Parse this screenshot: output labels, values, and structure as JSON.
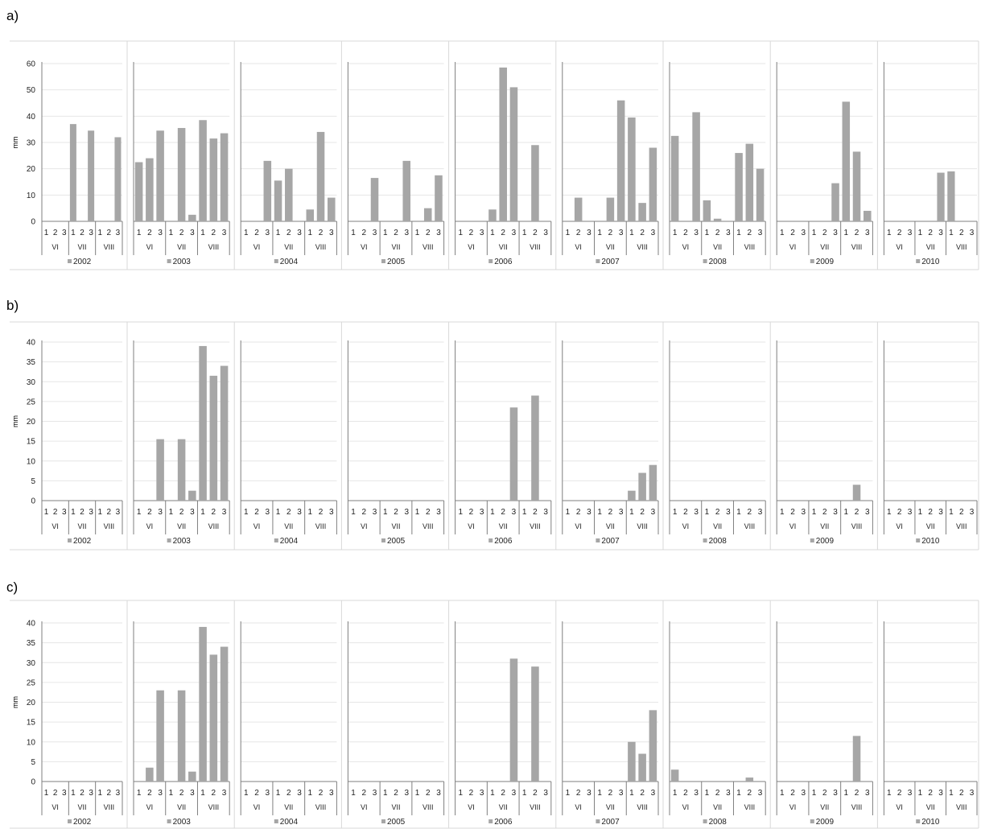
{
  "chart_data": [
    {
      "panel": "a)",
      "type": "bar",
      "ylabel": "mm",
      "ylim": [
        0,
        60
      ],
      "yticks": [
        0,
        10,
        20,
        30,
        40,
        50,
        60
      ],
      "months": [
        "VI",
        "VII",
        "VIII"
      ],
      "decades": [
        "1",
        "2",
        "3"
      ],
      "legend_position": "bottom",
      "series": [
        {
          "name": "2002",
          "values": [
            0,
            0,
            0,
            37,
            0,
            34.5,
            0,
            0,
            32
          ]
        },
        {
          "name": "2003",
          "values": [
            22.5,
            24,
            34.5,
            0,
            35.5,
            2.5,
            38.5,
            31.5,
            33.5
          ]
        },
        {
          "name": "2004",
          "values": [
            0,
            0,
            23,
            15.5,
            20,
            0,
            4.5,
            34,
            9
          ]
        },
        {
          "name": "2005",
          "values": [
            0,
            0,
            16.5,
            0,
            0,
            23,
            0,
            5,
            17.5
          ]
        },
        {
          "name": "2006",
          "values": [
            0,
            0,
            0,
            4.5,
            58.5,
            51,
            0,
            29,
            0
          ]
        },
        {
          "name": "2007",
          "values": [
            0,
            9,
            0,
            0,
            9,
            46,
            39.5,
            7,
            28
          ]
        },
        {
          "name": "2008",
          "values": [
            32.5,
            0,
            41.5,
            8,
            1,
            0,
            26,
            29.5,
            20
          ]
        },
        {
          "name": "2009",
          "values": [
            0,
            0,
            0,
            0,
            0,
            14.5,
            45.5,
            26.5,
            4
          ]
        },
        {
          "name": "2010",
          "values": [
            0,
            0,
            0,
            0,
            0,
            18.5,
            19,
            0,
            0
          ]
        }
      ]
    },
    {
      "panel": "b)",
      "type": "bar",
      "ylabel": "mm",
      "ylim": [
        0,
        40
      ],
      "yticks": [
        0,
        5,
        10,
        15,
        20,
        25,
        30,
        35,
        40
      ],
      "months": [
        "VI",
        "VII",
        "VIII"
      ],
      "decades": [
        "1",
        "2",
        "3"
      ],
      "legend_position": "bottom",
      "series": [
        {
          "name": "2002",
          "values": [
            0,
            0,
            0,
            0,
            0,
            0,
            0,
            0,
            0
          ]
        },
        {
          "name": "2003",
          "values": [
            0,
            0,
            15.5,
            0,
            15.5,
            2.5,
            39,
            31.5,
            34
          ]
        },
        {
          "name": "2004",
          "values": [
            0,
            0,
            0,
            0,
            0,
            0,
            0,
            0,
            0
          ]
        },
        {
          "name": "2005",
          "values": [
            0,
            0,
            0,
            0,
            0,
            0,
            0,
            0,
            0
          ]
        },
        {
          "name": "2006",
          "values": [
            0,
            0,
            0,
            0,
            0,
            23.5,
            0,
            26.5,
            0
          ]
        },
        {
          "name": "2007",
          "values": [
            0,
            0,
            0,
            0,
            0,
            0,
            2.5,
            7,
            9
          ]
        },
        {
          "name": "2008",
          "values": [
            0,
            0,
            0,
            0,
            0,
            0,
            0,
            0,
            0
          ]
        },
        {
          "name": "2009",
          "values": [
            0,
            0,
            0,
            0,
            0,
            0,
            0,
            4,
            0
          ]
        },
        {
          "name": "2010",
          "values": [
            0,
            0,
            0,
            0,
            0,
            0,
            0,
            0,
            0
          ]
        }
      ]
    },
    {
      "panel": "c)",
      "type": "bar",
      "ylabel": "mm",
      "ylim": [
        0,
        40
      ],
      "yticks": [
        0,
        5,
        10,
        15,
        20,
        25,
        30,
        35,
        40
      ],
      "months": [
        "VI",
        "VII",
        "VIII"
      ],
      "decades": [
        "1",
        "2",
        "3"
      ],
      "legend_position": "bottom",
      "series": [
        {
          "name": "2002",
          "values": [
            0,
            0,
            0,
            0,
            0,
            0,
            0,
            0,
            0
          ]
        },
        {
          "name": "2003",
          "values": [
            0,
            3.5,
            23,
            0,
            23,
            2.5,
            39,
            32,
            34
          ]
        },
        {
          "name": "2004",
          "values": [
            0,
            0,
            0,
            0,
            0,
            0,
            0,
            0,
            0
          ]
        },
        {
          "name": "2005",
          "values": [
            0,
            0,
            0,
            0,
            0,
            0,
            0,
            0,
            0
          ]
        },
        {
          "name": "2006",
          "values": [
            0,
            0,
            0,
            0,
            0,
            31,
            0,
            29,
            0
          ]
        },
        {
          "name": "2007",
          "values": [
            0,
            0,
            0,
            0,
            0,
            0,
            10,
            7,
            18
          ]
        },
        {
          "name": "2008",
          "values": [
            3,
            0,
            0,
            0,
            0,
            0,
            0,
            1,
            0
          ]
        },
        {
          "name": "2009",
          "values": [
            0,
            0,
            0,
            0,
            0,
            0,
            0,
            11.5,
            0
          ]
        },
        {
          "name": "2010",
          "values": [
            0,
            0,
            0,
            0,
            0,
            0,
            0,
            0,
            0
          ]
        }
      ]
    }
  ]
}
